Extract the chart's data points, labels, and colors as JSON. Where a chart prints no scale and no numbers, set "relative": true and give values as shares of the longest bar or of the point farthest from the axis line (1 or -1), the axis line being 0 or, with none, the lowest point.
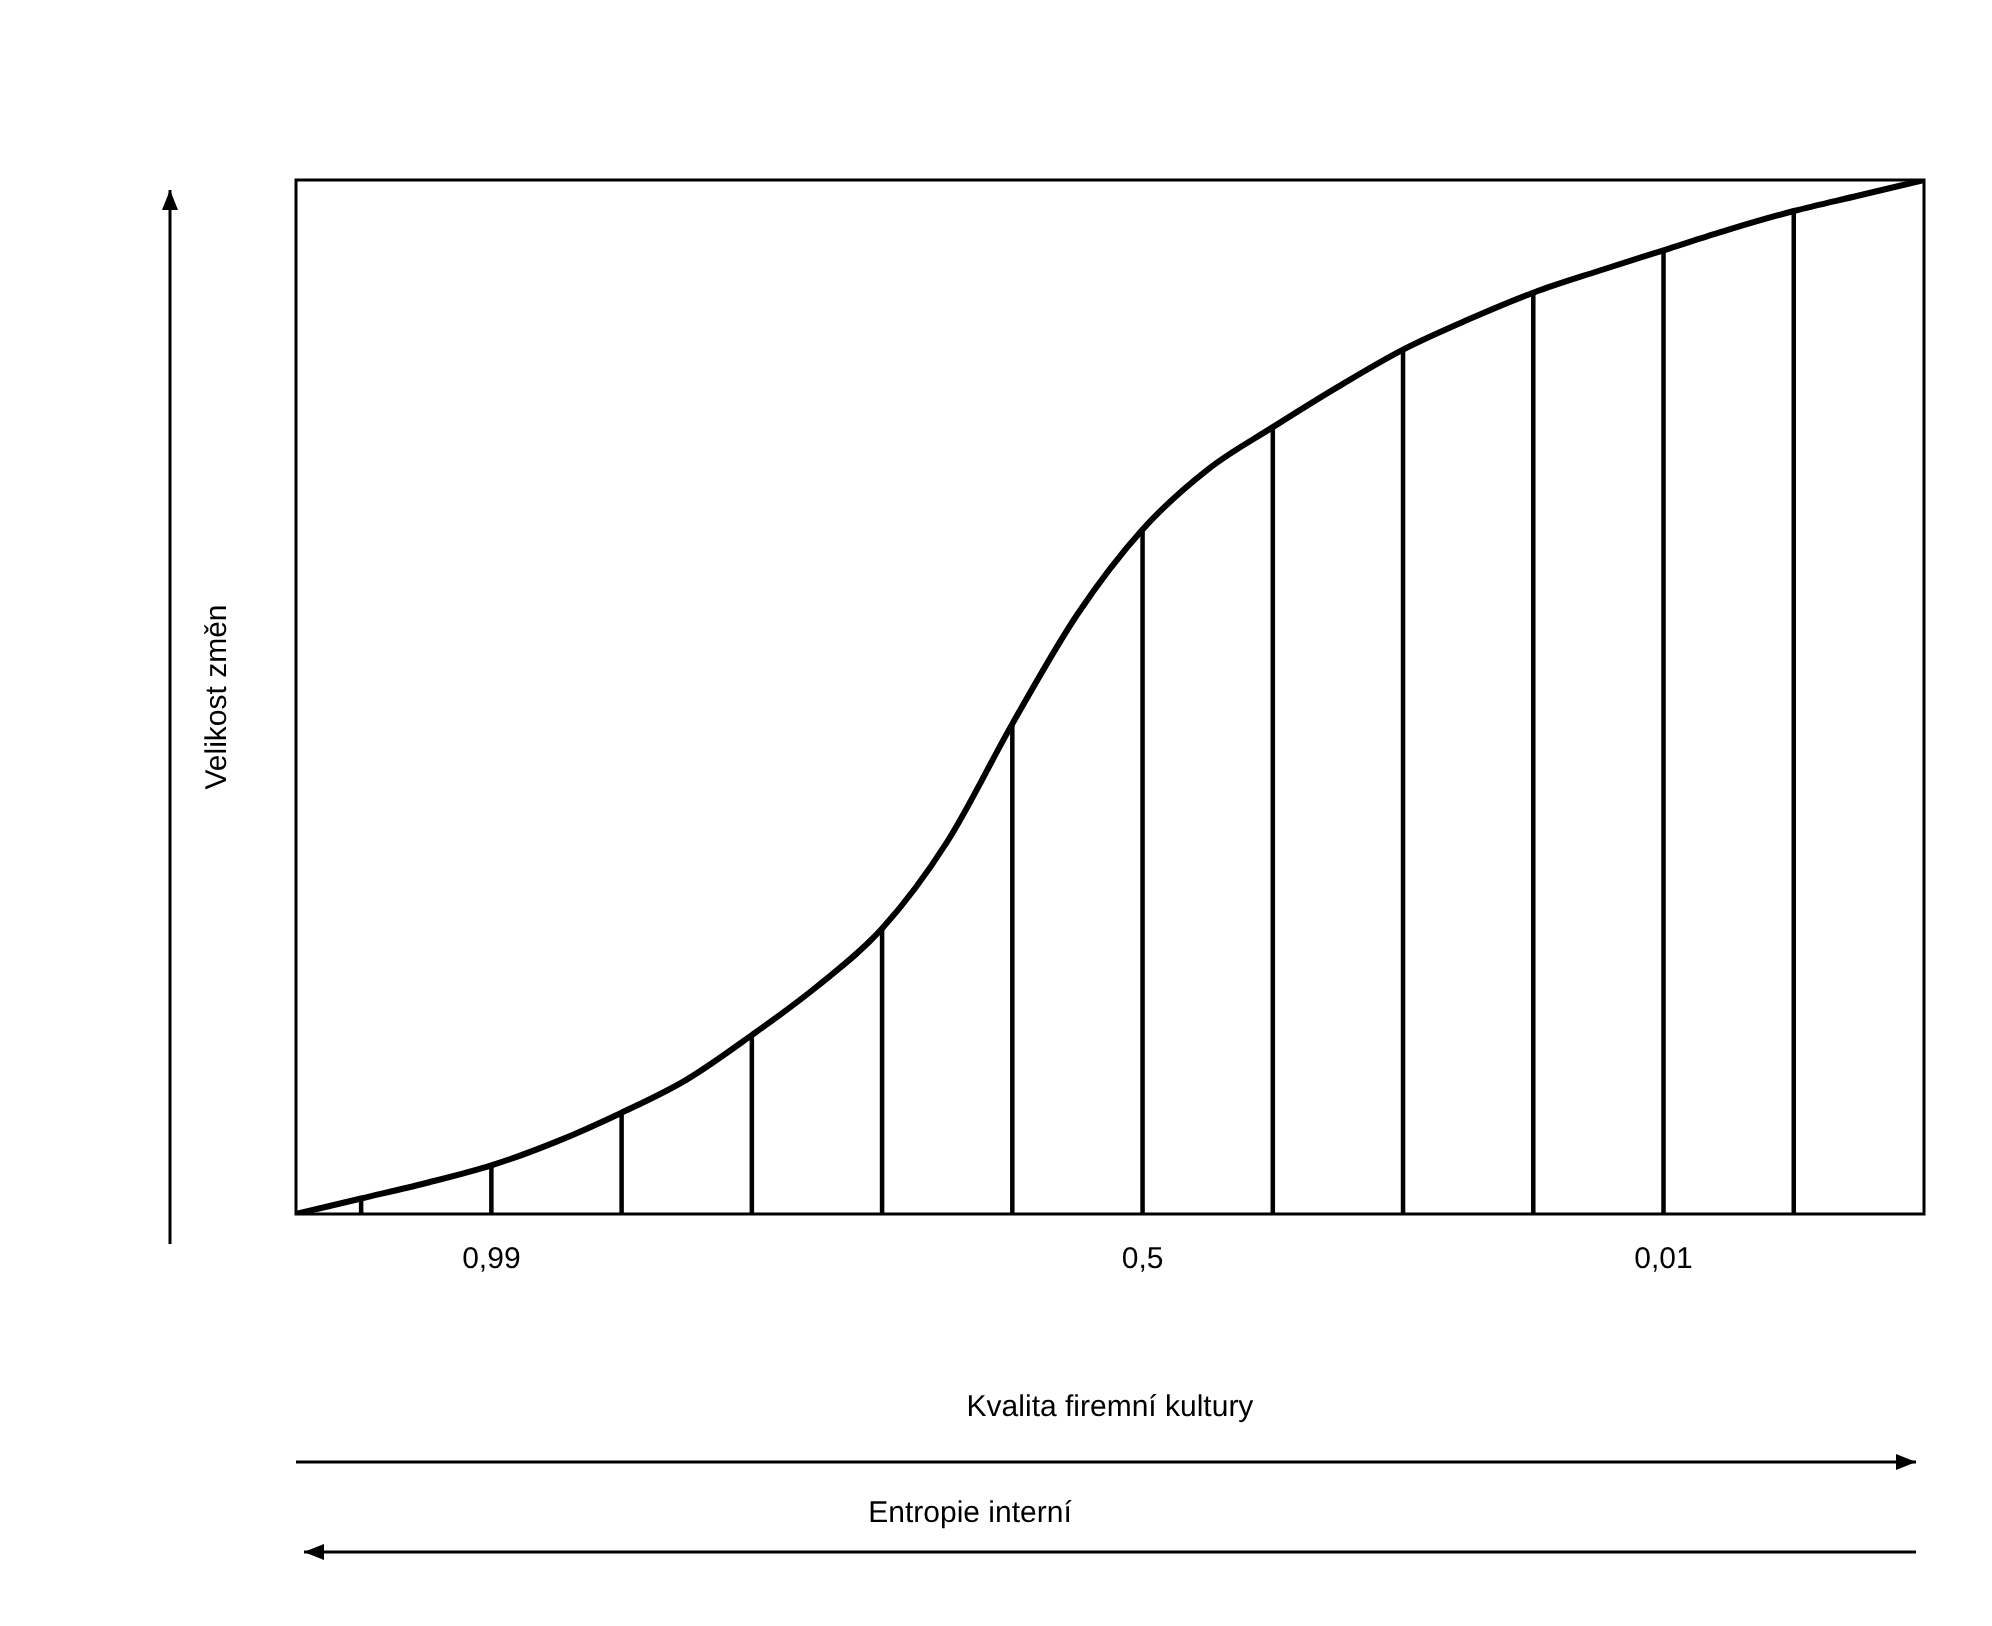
{
  "chart_data": {
    "type": "line",
    "relative": true,
    "xlabel": "Kvalita firemní kultury",
    "ylabel": "Velikost změn",
    "annotations": [
      "Entropie interní"
    ],
    "categories": [
      null,
      null,
      null,
      "0,99",
      null,
      null,
      null,
      null,
      null,
      null,
      null,
      null,
      null,
      "0,5",
      null,
      null,
      null,
      null,
      null,
      null,
      null,
      "0,01",
      null,
      null,
      null,
      null
    ],
    "series": [
      {
        "color": "#000000",
        "values": [
          0,
          0.015,
          0.03,
          0.047,
          0.07,
          0.098,
          0.13,
          0.173,
          0.22,
          0.276,
          0.36,
          0.474,
          0.58,
          0.662,
          0.72,
          0.761,
          0.8,
          0.836,
          0.865,
          0.891,
          0.912,
          0.932,
          0.952,
          0.97,
          0.985,
          1
        ]
      },
      {
        "type": "bar",
        "color": "#000000",
        "values": [
          null,
          0.015,
          null,
          0.047,
          null,
          0.098,
          null,
          0.173,
          null,
          0.276,
          null,
          0.474,
          null,
          0.662,
          null,
          0.761,
          null,
          0.836,
          null,
          0.891,
          null,
          0.932,
          null,
          0.97,
          null,
          null
        ]
      }
    ],
    "legend": false,
    "grid": false,
    "marker": "none"
  }
}
